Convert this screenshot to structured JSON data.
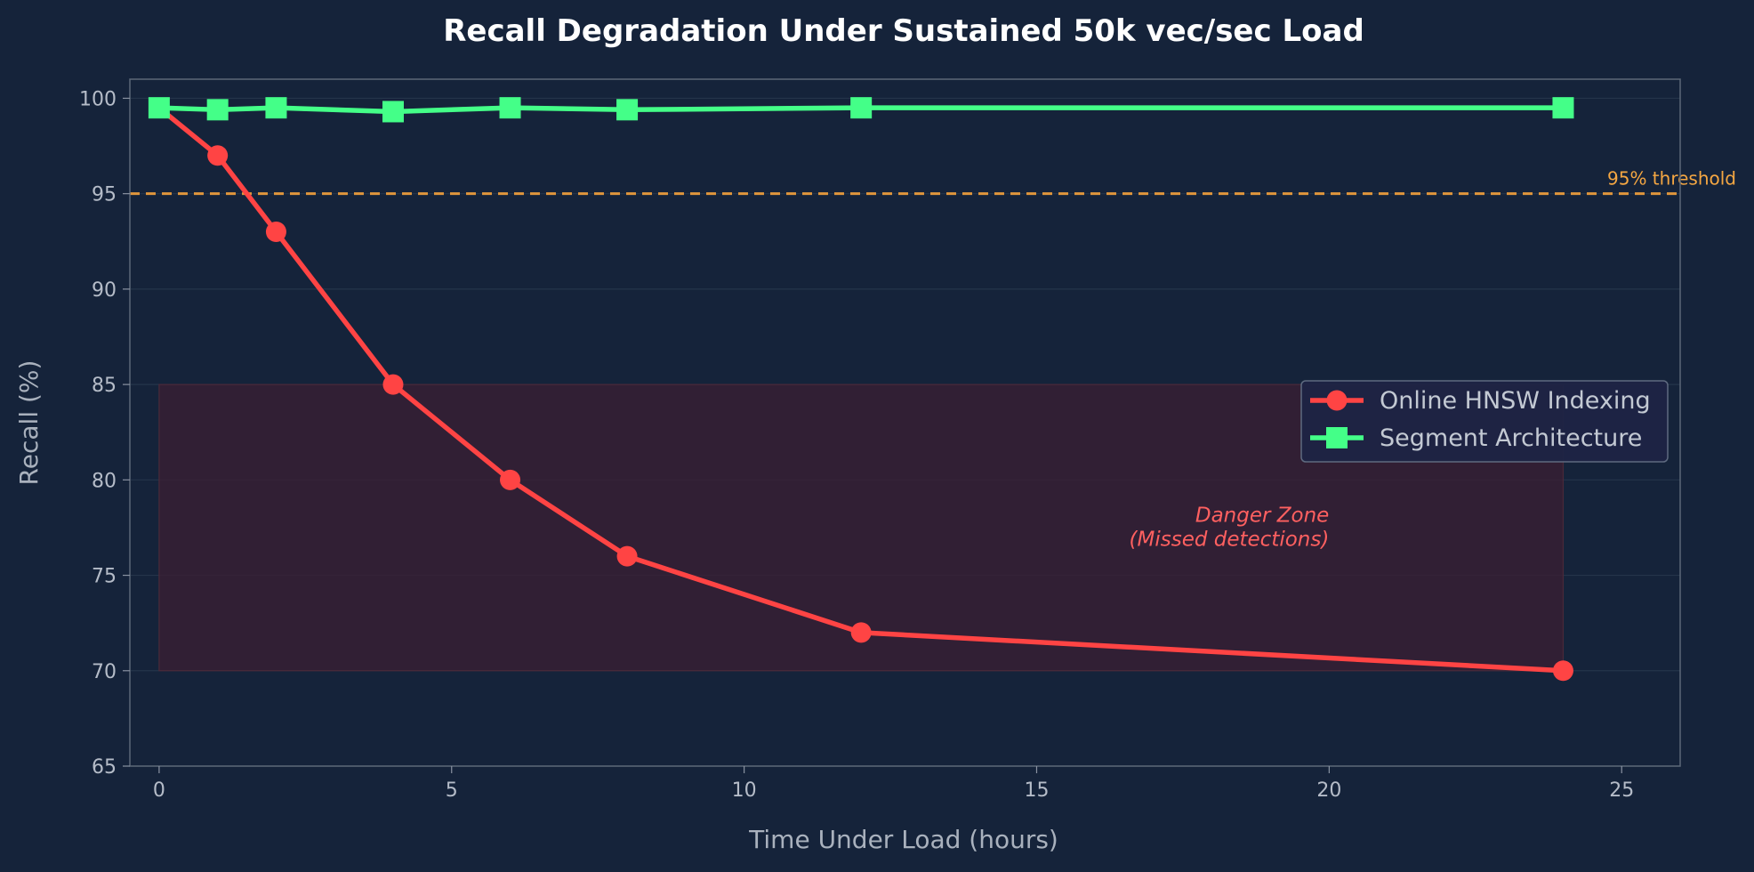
{
  "chart_data": {
    "type": "line",
    "title": "Recall Degradation Under Sustained 50k vec/sec Load",
    "xlabel": "Time Under Load (hours)",
    "ylabel": "Recall (%)",
    "xlim": [
      -0.5,
      26
    ],
    "ylim": [
      65,
      101
    ],
    "xticks": [
      0,
      5,
      10,
      15,
      20,
      25
    ],
    "yticks": [
      65,
      70,
      75,
      80,
      85,
      90,
      95,
      100
    ],
    "grid": true,
    "legend_position": "center-right",
    "series": [
      {
        "name": "Online HNSW Indexing",
        "color": "#ff4444",
        "marker": "circle",
        "x": [
          0,
          1,
          2,
          4,
          6,
          8,
          12,
          24
        ],
        "y": [
          99.5,
          97,
          93,
          85,
          80,
          76,
          72,
          70
        ]
      },
      {
        "name": "Segment Architecture",
        "color": "#44ff88",
        "marker": "square",
        "x": [
          0,
          1,
          2,
          4,
          6,
          8,
          12,
          24
        ],
        "y": [
          99.5,
          99.4,
          99.5,
          99.3,
          99.5,
          99.4,
          99.5,
          99.5
        ]
      }
    ],
    "threshold": {
      "value": 95,
      "label": "95% threshold",
      "color": "#e0963c",
      "label_color": "#f5a742"
    },
    "danger_zone": {
      "x_range": [
        0,
        24
      ],
      "y_range": [
        70,
        85
      ],
      "label_line1": "Danger Zone",
      "label_line2": "(Missed detections)",
      "fill_color": "#3a1f33",
      "label_color": "#ff6060",
      "label_x": 20,
      "label_y": 77
    }
  }
}
